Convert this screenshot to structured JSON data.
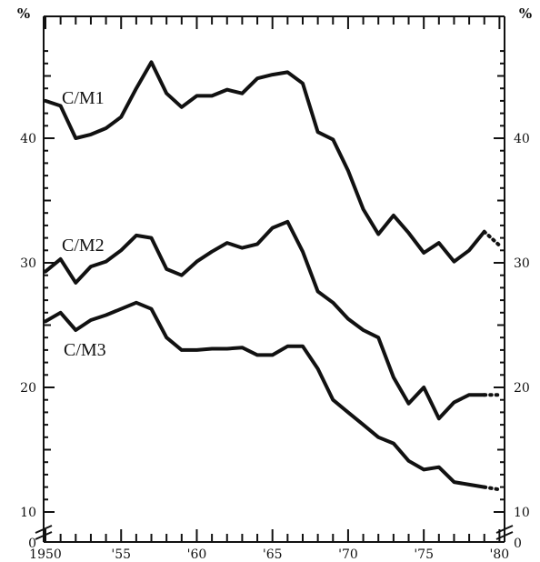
{
  "chart_data": {
    "type": "line",
    "title": "",
    "xlabel": "",
    "ylabel": "",
    "y_unit_left": "%",
    "y_unit_right": "%",
    "xlim": [
      1950,
      1980
    ],
    "ylim": [
      10,
      48
    ],
    "y_axis_break": true,
    "x_tick_labels": [
      "1950",
      "'55",
      "'60",
      "'65",
      "'70",
      "'75",
      "'80"
    ],
    "x_tick_values": [
      1950,
      1955,
      1960,
      1965,
      1970,
      1975,
      1980
    ],
    "y_tick_labels_left": [
      "0",
      "10",
      "20",
      "30",
      "40"
    ],
    "y_tick_labels_right": [
      "0",
      "10",
      "20",
      "30",
      "40"
    ],
    "y_tick_values": [
      10,
      20,
      30,
      40
    ],
    "grid": false,
    "legend": "none",
    "projected_from": 1979,
    "x": [
      1950,
      1951,
      1952,
      1953,
      1954,
      1955,
      1956,
      1957,
      1958,
      1959,
      1960,
      1961,
      1962,
      1963,
      1964,
      1965,
      1966,
      1967,
      1968,
      1969,
      1970,
      1971,
      1972,
      1973,
      1974,
      1975,
      1976,
      1977,
      1978,
      1979,
      1980
    ],
    "series": [
      {
        "name": "C/M1",
        "values": [
          43.0,
          42.6,
          40.0,
          40.3,
          40.8,
          41.7,
          44.0,
          46.1,
          43.6,
          42.5,
          43.4,
          43.4,
          43.9,
          43.6,
          44.8,
          45.1,
          45.3,
          44.4,
          40.5,
          39.9,
          37.4,
          34.3,
          32.3,
          33.8,
          32.4,
          30.8,
          31.6,
          30.1,
          31.0,
          32.5,
          31.4
        ]
      },
      {
        "name": "C/M2",
        "values": [
          29.3,
          30.3,
          28.4,
          29.7,
          30.1,
          31.0,
          32.2,
          32.0,
          29.5,
          29.0,
          30.1,
          30.9,
          31.6,
          31.2,
          31.5,
          32.8,
          33.3,
          30.9,
          27.7,
          26.8,
          25.5,
          24.6,
          24.0,
          20.8,
          18.7,
          20.0,
          17.5,
          18.8,
          19.4,
          19.4,
          19.4
        ]
      },
      {
        "name": "C/M3",
        "values": [
          25.3,
          26.0,
          24.6,
          25.4,
          25.8,
          26.3,
          26.8,
          26.3,
          24.0,
          23.0,
          23.0,
          23.1,
          23.1,
          23.2,
          22.6,
          22.6,
          23.3,
          23.3,
          21.5,
          19.0,
          18.0,
          17.0,
          16.0,
          15.5,
          14.1,
          13.4,
          13.6,
          12.4,
          12.2,
          12.0,
          11.8
        ]
      }
    ]
  }
}
